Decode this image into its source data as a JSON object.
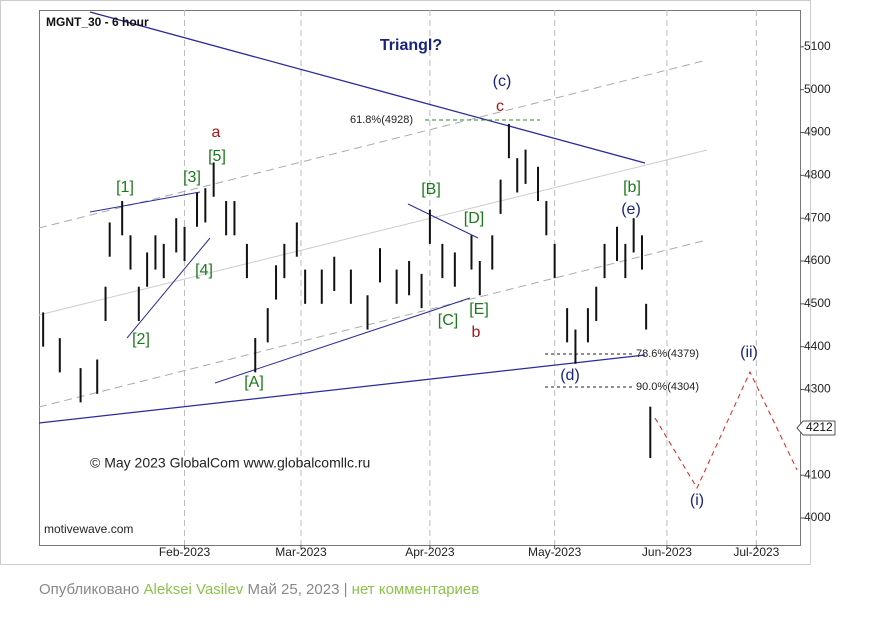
{
  "chart_data": {
    "type": "ohlc",
    "title": "MGNT_30 - 6 hour",
    "subtitle": "Triangl?",
    "copyright": "© May 2023 GlobalCom www.globalcomllc.ru",
    "watermark": "motivewave.com",
    "fib_labels": [
      "61.8%(4928)",
      "78.6%(4379)",
      "90.0%(4304)"
    ],
    "wave_labels": [
      "[1]",
      "[2]",
      "[3]",
      "[4]",
      "[5]",
      "a",
      "[A]",
      "[B]",
      "[C]",
      "[D]",
      "[E]",
      "b",
      "c",
      "(c)",
      "[b]",
      "(e)",
      "(d)",
      "(i)",
      "(ii)"
    ],
    "last_price_label": "4212",
    "color": "#111111",
    "x": [
      1,
      5,
      10,
      14,
      16,
      17,
      20,
      22,
      24,
      26,
      28,
      30,
      33,
      35,
      38,
      40,
      42,
      45,
      47,
      50,
      52,
      55,
      57,
      59,
      62,
      64,
      68,
      71,
      75,
      79,
      82,
      86,
      89,
      92,
      94,
      97,
      100,
      104,
      106,
      109,
      111,
      113,
      115,
      117,
      120,
      122,
      124,
      127,
      129,
      132,
      134,
      136,
      139,
      141,
      143,
      145,
      146,
      147
    ],
    "high": [
      4480,
      4420,
      4350,
      4370,
      4540,
      4690,
      4740,
      4660,
      4540,
      4620,
      4660,
      4640,
      4700,
      4680,
      4760,
      4770,
      4830,
      4740,
      4740,
      4640,
      4420,
      4490,
      4590,
      4640,
      4690,
      4580,
      4580,
      4610,
      4580,
      4520,
      4630,
      4580,
      4600,
      4570,
      4720,
      4640,
      4620,
      4660,
      4600,
      4660,
      4790,
      4920,
      4840,
      4860,
      4820,
      4740,
      4640,
      4490,
      4440,
      4490,
      4540,
      4640,
      4680,
      4640,
      4700,
      4660,
      4500,
      4260
    ],
    "low": [
      4400,
      4340,
      4270,
      4290,
      4460,
      4610,
      4660,
      4580,
      4460,
      4540,
      4580,
      4560,
      4620,
      4600,
      4680,
      4690,
      4750,
      4660,
      4660,
      4560,
      4340,
      4410,
      4510,
      4560,
      4610,
      4500,
      4500,
      4530,
      4500,
      4440,
      4550,
      4500,
      4520,
      4490,
      4640,
      4560,
      4540,
      4580,
      4520,
      4580,
      4710,
      4840,
      4760,
      4780,
      4740,
      4660,
      4560,
      4410,
      4360,
      4410,
      4460,
      4560,
      4600,
      4560,
      4620,
      4580,
      4440,
      4140
    ],
    "xlim": [
      0,
      183
    ],
    "xticks": [
      {
        "value": 35,
        "label": "Feb-2023"
      },
      {
        "value": 63,
        "label": "Mar-2023"
      },
      {
        "value": 94,
        "label": "Apr-2023"
      },
      {
        "value": 124,
        "label": "May-2023"
      },
      {
        "value": 151,
        "label": "Jun-2023"
      },
      {
        "value": 172.5,
        "label": "Jul-2023"
      }
    ],
    "ylim": [
      3937,
      5186
    ],
    "yticks": [
      4000,
      4100,
      4200,
      4300,
      4400,
      4500,
      4600,
      4700,
      4800,
      4900,
      5000,
      5100
    ],
    "grid": true
  },
  "footer": {
    "prefix": "Опубликовано",
    "author": "Aleksei Vasilev",
    "date": "Май 25, 2023",
    "separator": "|",
    "comments": "нет комментариев"
  }
}
